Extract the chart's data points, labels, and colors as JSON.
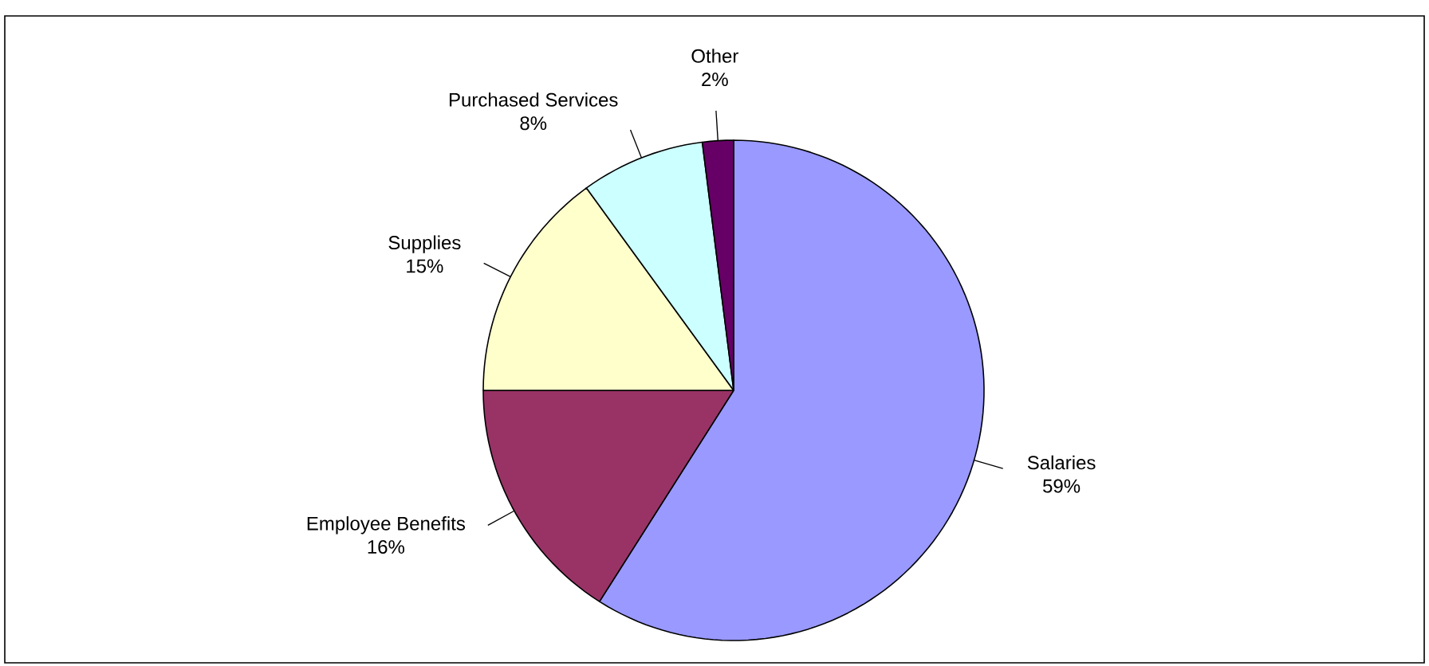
{
  "chart_data": {
    "type": "pie",
    "categories": [
      "Salaries",
      "Employee Benefits",
      "Supplies",
      "Purchased Services",
      "Other"
    ],
    "values": [
      59,
      16,
      15,
      8,
      2
    ],
    "value_labels": [
      "59%",
      "16%",
      "15%",
      "8%",
      "2%"
    ],
    "colors": [
      "#9999ff",
      "#993366",
      "#ffffcc",
      "#ccffff",
      "#660066"
    ]
  }
}
